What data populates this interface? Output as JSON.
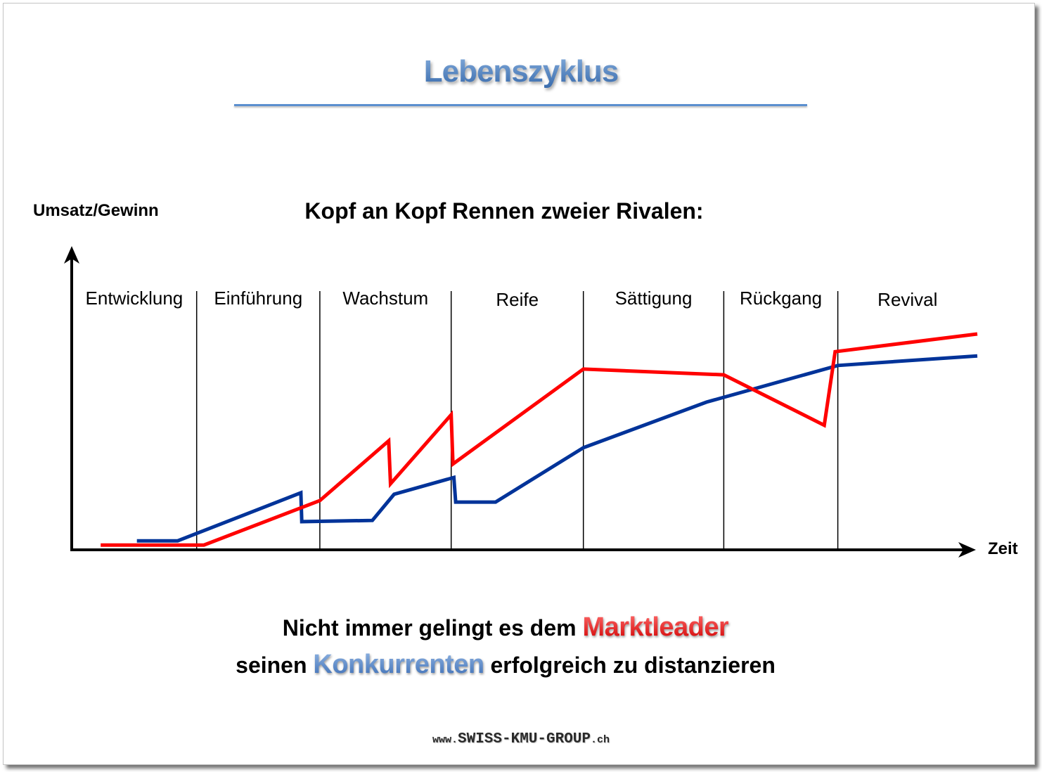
{
  "page": {
    "title": "Lebenszyklus"
  },
  "caption": {
    "line1_text": "Nicht immer gelingt es dem ",
    "line1_highlight": "Marktleader",
    "line2_text": "seinen ",
    "line2_highlight": "Konkurrenten",
    "line2_rest": " erfolgreich zu distanzieren"
  },
  "footer": {
    "prefix": "www.",
    "name": "SWISS-KMU-GROUP",
    "suffix": ".ch"
  },
  "colors": {
    "title_top": "#8db4e2",
    "title_bottom": "#2e62a6",
    "rule": "#5b8fcf",
    "highlight_red_top": "#ff6b6b",
    "highlight_red_bottom": "#d00000",
    "highlight_blue_top": "#92b6e4",
    "highlight_blue_bottom": "#3a6cb4",
    "footer": "#2a2a2a",
    "axis": "#000000"
  },
  "chart_data": {
    "type": "line",
    "title": "Kopf an Kopf Rennen zweier Rivalen:",
    "xlabel": "Zeit",
    "ylabel": "Umsatz/Gewinn",
    "xlim": [
      0,
      100
    ],
    "ylim": [
      0,
      100
    ],
    "grid": false,
    "phases": [
      {
        "label": "Entwicklung",
        "from": 0,
        "to": 13.8
      },
      {
        "label": "Einführung",
        "from": 13.8,
        "to": 27.4
      },
      {
        "label": "Wachstum",
        "from": 27.4,
        "to": 41.9
      },
      {
        "label": "Reife",
        "from": 41.9,
        "to": 56.5
      },
      {
        "label": "Sättigung",
        "from": 56.5,
        "to": 72.0
      },
      {
        "label": "Rückgang",
        "from": 72.0,
        "to": 84.6
      },
      {
        "label": "Revival",
        "from": 84.6,
        "to": 100
      }
    ],
    "series": [
      {
        "color": "#003399",
        "x": [
          7.2,
          11.7,
          25.3,
          25.4,
          33.2,
          35.6,
          42.2,
          42.4,
          46.8,
          56.5,
          70.1,
          84.6,
          100
        ],
        "y": [
          3.0,
          3.0,
          19.0,
          9.4,
          9.8,
          18.5,
          24.1,
          15.9,
          15.9,
          34.0,
          49.2,
          61.4,
          64.6
        ]
      },
      {
        "color": "#ff0000",
        "x": [
          3.2,
          14.6,
          27.4,
          35.0,
          35.2,
          41.9,
          42.1,
          56.5,
          72.0,
          83.1,
          84.3,
          100
        ],
        "y": [
          1.6,
          1.6,
          16.4,
          36.3,
          22.0,
          45.0,
          28.6,
          60.2,
          58.3,
          41.5,
          66.0,
          71.9
        ]
      }
    ]
  }
}
